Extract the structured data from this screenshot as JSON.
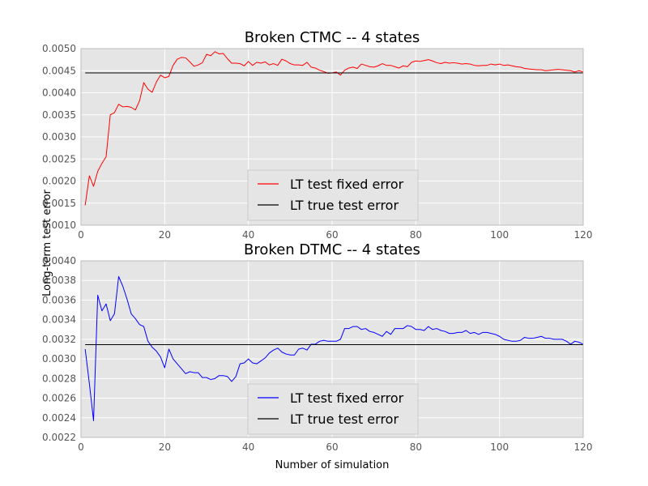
{
  "figure": {
    "ylabel": "Long-term test error",
    "xlabel": "Number of simulation"
  },
  "colors": {
    "plot_bg": "#e5e5e5",
    "grid": "#ffffff",
    "frame": "#bcbcbc",
    "legend_bg": "#e5e5e5",
    "legend_border": "#cccccc"
  },
  "chart_data": [
    {
      "type": "line",
      "title": "Broken CTMC -- 4 states",
      "xlim": [
        0,
        120
      ],
      "ylim": [
        0.001,
        0.005
      ],
      "xticks": [
        0,
        20,
        40,
        60,
        80,
        100,
        120
      ],
      "yticks": [
        0.001,
        0.0015,
        0.002,
        0.0025,
        0.003,
        0.0035,
        0.004,
        0.0045,
        0.005
      ],
      "ytick_labels": [
        "0.0010",
        "0.0015",
        "0.0020",
        "0.0025",
        "0.0030",
        "0.0035",
        "0.0040",
        "0.0045",
        "0.0050"
      ],
      "grid": true,
      "legend_position": "lower-center",
      "series": [
        {
          "name": "LT test fixed error",
          "color": "#ff0000",
          "x": [
            1,
            2,
            3,
            4,
            5,
            6,
            7,
            8,
            9,
            10,
            11,
            12,
            13,
            14,
            15,
            16,
            17,
            18,
            19,
            20,
            21,
            22,
            23,
            24,
            25,
            26,
            27,
            28,
            29,
            30,
            31,
            32,
            33,
            34,
            35,
            36,
            37,
            38,
            39,
            40,
            41,
            42,
            43,
            44,
            45,
            46,
            47,
            48,
            49,
            50,
            51,
            52,
            53,
            54,
            55,
            56,
            57,
            58,
            59,
            60,
            61,
            62,
            63,
            64,
            65,
            66,
            67,
            68,
            69,
            70,
            71,
            72,
            73,
            74,
            75,
            76,
            77,
            78,
            79,
            80,
            81,
            82,
            83,
            84,
            85,
            86,
            87,
            88,
            89,
            90,
            91,
            92,
            93,
            94,
            95,
            96,
            97,
            98,
            99,
            100,
            101,
            102,
            103,
            104,
            105,
            106,
            107,
            108,
            109,
            110,
            111,
            112,
            113,
            114,
            115,
            116,
            117,
            118,
            119,
            120
          ],
          "y": [
            0.00145,
            0.00212,
            0.00188,
            0.00222,
            0.0024,
            0.00255,
            0.0035,
            0.00355,
            0.00374,
            0.00368,
            0.00369,
            0.00367,
            0.00361,
            0.00382,
            0.00423,
            0.00408,
            0.00401,
            0.00424,
            0.0044,
            0.00434,
            0.00437,
            0.00462,
            0.00476,
            0.0048,
            0.00479,
            0.0047,
            0.0046,
            0.00463,
            0.00468,
            0.00487,
            0.00484,
            0.00493,
            0.00488,
            0.00489,
            0.00477,
            0.00467,
            0.00467,
            0.00466,
            0.00461,
            0.00471,
            0.00462,
            0.00469,
            0.00467,
            0.0047,
            0.00463,
            0.00466,
            0.00462,
            0.00476,
            0.00472,
            0.00466,
            0.00463,
            0.00463,
            0.00462,
            0.00469,
            0.00458,
            0.00456,
            0.00451,
            0.00448,
            0.00444,
            0.00445,
            0.00447,
            0.0044,
            0.00451,
            0.00456,
            0.00458,
            0.00455,
            0.00465,
            0.00462,
            0.00459,
            0.00458,
            0.00461,
            0.00466,
            0.00462,
            0.00462,
            0.00459,
            0.00456,
            0.00461,
            0.00459,
            0.00469,
            0.00472,
            0.00471,
            0.00473,
            0.00475,
            0.00472,
            0.00468,
            0.00466,
            0.00469,
            0.00467,
            0.00468,
            0.00467,
            0.00465,
            0.00466,
            0.00465,
            0.00462,
            0.00461,
            0.00462,
            0.00462,
            0.00465,
            0.00463,
            0.00465,
            0.00462,
            0.00463,
            0.00461,
            0.00459,
            0.00458,
            0.00455,
            0.00454,
            0.00453,
            0.00452,
            0.00452,
            0.0045,
            0.00451,
            0.00452,
            0.00453,
            0.00452,
            0.00451,
            0.0045,
            0.00447,
            0.0045,
            0.00447
          ]
        },
        {
          "name": "LT true test error",
          "color": "#000000",
          "x": [
            1,
            120
          ],
          "y": [
            0.00445,
            0.00445
          ]
        }
      ]
    },
    {
      "type": "line",
      "title": "Broken DTMC -- 4 states",
      "xlim": [
        0,
        120
      ],
      "ylim": [
        0.0022,
        0.004
      ],
      "xticks": [
        0,
        20,
        40,
        60,
        80,
        100,
        120
      ],
      "yticks": [
        0.0022,
        0.0024,
        0.0026,
        0.0028,
        0.003,
        0.0032,
        0.0034,
        0.0036,
        0.0038,
        0.004
      ],
      "ytick_labels": [
        "0.0022",
        "0.0024",
        "0.0026",
        "0.0028",
        "0.0030",
        "0.0032",
        "0.0034",
        "0.0036",
        "0.0038",
        "0.0040"
      ],
      "grid": true,
      "legend_position": "lower-center",
      "series": [
        {
          "name": "LT test fixed error",
          "color": "#0000ff",
          "x": [
            1,
            2,
            3,
            4,
            5,
            6,
            7,
            8,
            9,
            10,
            11,
            12,
            13,
            14,
            15,
            16,
            17,
            18,
            19,
            20,
            21,
            22,
            23,
            24,
            25,
            26,
            27,
            28,
            29,
            30,
            31,
            32,
            33,
            34,
            35,
            36,
            37,
            38,
            39,
            40,
            41,
            42,
            43,
            44,
            45,
            46,
            47,
            48,
            49,
            50,
            51,
            52,
            53,
            54,
            55,
            56,
            57,
            58,
            59,
            60,
            61,
            62,
            63,
            64,
            65,
            66,
            67,
            68,
            69,
            70,
            71,
            72,
            73,
            74,
            75,
            76,
            77,
            78,
            79,
            80,
            81,
            82,
            83,
            84,
            85,
            86,
            87,
            88,
            89,
            90,
            91,
            92,
            93,
            94,
            95,
            96,
            97,
            98,
            99,
            100,
            101,
            102,
            103,
            104,
            105,
            106,
            107,
            108,
            109,
            110,
            111,
            112,
            113,
            114,
            115,
            116,
            117,
            118,
            119,
            120
          ],
          "y": [
            0.0031,
            0.00275,
            0.00237,
            0.00365,
            0.00349,
            0.00356,
            0.00339,
            0.00346,
            0.00384,
            0.00374,
            0.00361,
            0.00346,
            0.00341,
            0.00335,
            0.00333,
            0.00318,
            0.00312,
            0.00308,
            0.00302,
            0.00291,
            0.0031,
            0.003,
            0.00295,
            0.0029,
            0.00285,
            0.00287,
            0.00286,
            0.00286,
            0.00281,
            0.00281,
            0.00279,
            0.0028,
            0.00283,
            0.00283,
            0.00282,
            0.00277,
            0.00282,
            0.00295,
            0.00296,
            0.003,
            0.00296,
            0.00295,
            0.00298,
            0.00301,
            0.00306,
            0.00309,
            0.00311,
            0.00307,
            0.00305,
            0.00304,
            0.00304,
            0.0031,
            0.00311,
            0.00309,
            0.00315,
            0.00315,
            0.00318,
            0.00319,
            0.00318,
            0.00318,
            0.00318,
            0.0032,
            0.00331,
            0.00331,
            0.00333,
            0.00333,
            0.0033,
            0.00331,
            0.00328,
            0.00327,
            0.00325,
            0.00323,
            0.00328,
            0.00325,
            0.00331,
            0.00331,
            0.00331,
            0.00334,
            0.00333,
            0.0033,
            0.0033,
            0.00329,
            0.00333,
            0.0033,
            0.00331,
            0.00329,
            0.00328,
            0.00326,
            0.00326,
            0.00327,
            0.00327,
            0.00329,
            0.00326,
            0.00327,
            0.00325,
            0.00327,
            0.00327,
            0.00326,
            0.00325,
            0.00323,
            0.0032,
            0.00319,
            0.00318,
            0.00318,
            0.00319,
            0.00322,
            0.00321,
            0.00321,
            0.00322,
            0.00323,
            0.00321,
            0.00321,
            0.0032,
            0.0032,
            0.0032,
            0.00318,
            0.00315,
            0.00318,
            0.00317,
            0.00315
          ]
        },
        {
          "name": "LT true test error",
          "color": "#000000",
          "x": [
            1,
            120
          ],
          "y": [
            0.003145,
            0.003145
          ]
        }
      ]
    }
  ]
}
